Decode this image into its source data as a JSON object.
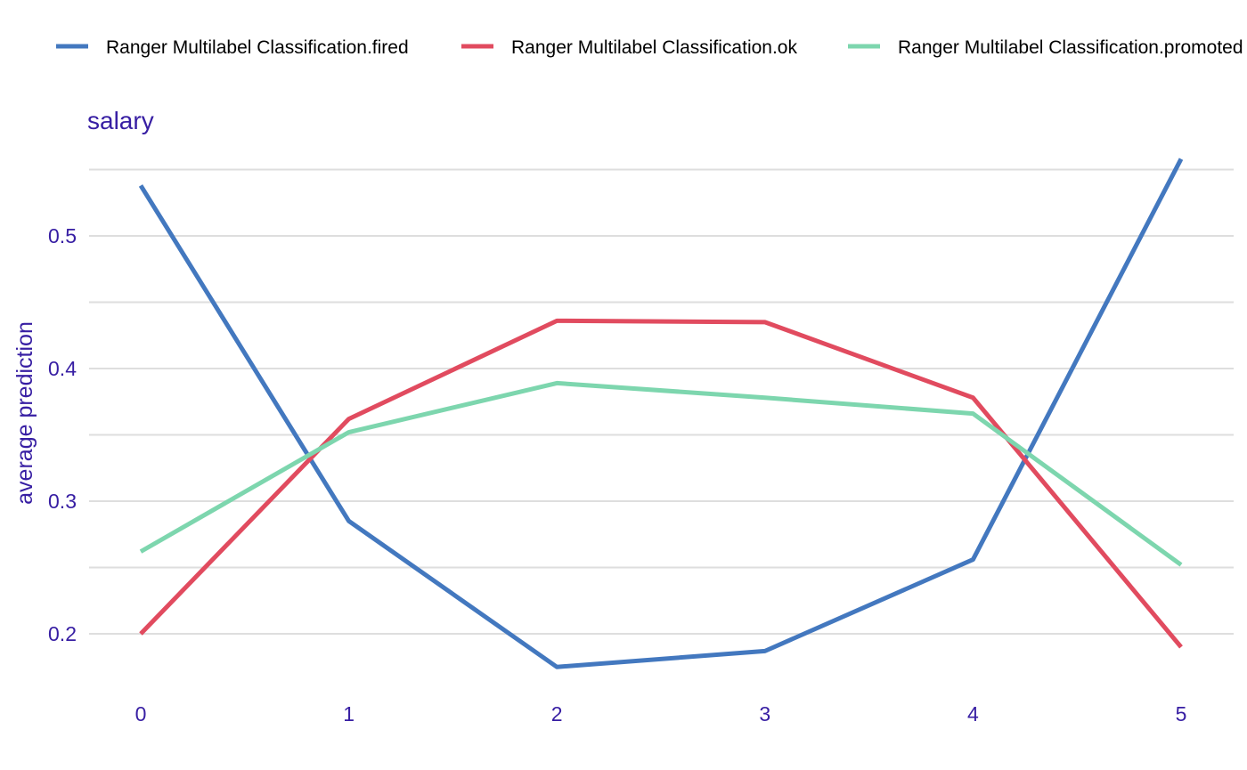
{
  "chart_data": {
    "type": "line",
    "title": "salary",
    "xlabel": "",
    "ylabel": "average prediction",
    "x": [
      0,
      1,
      2,
      3,
      4,
      5
    ],
    "xlim": [
      -0.25,
      5.25
    ],
    "ylim": [
      0.158,
      0.565
    ],
    "x_ticks": [
      "0",
      "1",
      "2",
      "3",
      "4",
      "5"
    ],
    "y_ticks": [
      0.2,
      0.3,
      0.4,
      0.5
    ],
    "y_tick_labels": [
      "0.2",
      "0.3",
      "0.4",
      "0.5"
    ],
    "y_minor_gridlines": [
      0.25,
      0.35,
      0.45,
      0.55
    ],
    "grid": true,
    "legend_position": "top",
    "series": [
      {
        "name": "Ranger Multilabel Classification.fired",
        "color": "#4378bf",
        "values": [
          0.538,
          0.285,
          0.175,
          0.187,
          0.256,
          0.558
        ]
      },
      {
        "name": "Ranger Multilabel Classification.ok",
        "color": "#e14b5f",
        "values": [
          0.2,
          0.362,
          0.436,
          0.435,
          0.378,
          0.19
        ]
      },
      {
        "name": "Ranger Multilabel Classification.promoted",
        "color": "#7dd6ae",
        "values": [
          0.262,
          0.352,
          0.389,
          0.378,
          0.366,
          0.252
        ]
      }
    ]
  }
}
